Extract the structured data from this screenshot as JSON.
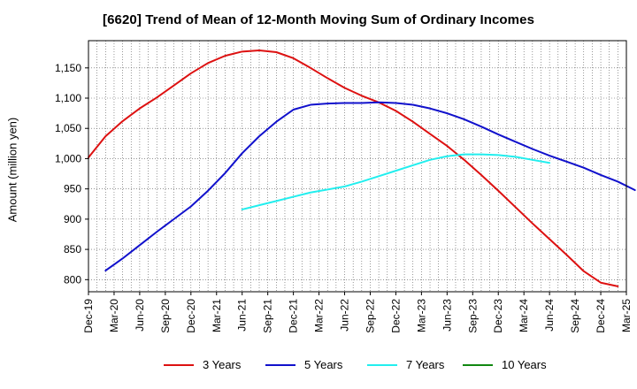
{
  "chart_data": {
    "type": "line",
    "title": "[6620]  Trend of Mean of 12-Month Moving Sum of Ordinary Incomes",
    "xlabel": "",
    "ylabel": "Amount (million yen)",
    "ylim": [
      780,
      1195
    ],
    "yticks": [
      800,
      850,
      900,
      950,
      1000,
      1050,
      1100,
      1150
    ],
    "ytick_labels": [
      "800",
      "850",
      "900",
      "950",
      "1,000",
      "1,050",
      "1,100",
      "1,150"
    ],
    "xtick_labels": [
      "Dec-19",
      "Mar-20",
      "Jun-20",
      "Sep-20",
      "Dec-20",
      "Mar-21",
      "Jun-21",
      "Sep-21",
      "Dec-21",
      "Mar-22",
      "Jun-22",
      "Sep-22",
      "Dec-22",
      "Mar-23",
      "Jun-23",
      "Sep-23",
      "Dec-23",
      "Mar-24",
      "Jun-24",
      "Sep-24",
      "Dec-24",
      "Mar-25"
    ],
    "grid": true,
    "legend_position": "bottom",
    "series": [
      {
        "name": "3 Years",
        "color": "#dd1111",
        "start_index": 0,
        "values": [
          1002,
          1037,
          1062,
          1083,
          1101,
          1121,
          1141,
          1158,
          1170,
          1177,
          1179,
          1176,
          1166,
          1150,
          1133,
          1117,
          1104,
          1093,
          1079,
          1061,
          1041,
          1021,
          998,
          973,
          947,
          920,
          893,
          867,
          841,
          814,
          795,
          789
        ]
      },
      {
        "name": "5 Years",
        "color": "#1111cc",
        "start_index": 1,
        "values": [
          815,
          835,
          857,
          879,
          900,
          921,
          947,
          976,
          1009,
          1037,
          1061,
          1081,
          1089,
          1091,
          1092,
          1092,
          1093,
          1092,
          1089,
          1083,
          1075,
          1065,
          1053,
          1040,
          1028,
          1016,
          1005,
          995,
          985,
          973,
          962,
          948
        ]
      },
      {
        "name": "7 Years",
        "color": "#22eeee",
        "start_index": 9,
        "values": [
          916,
          923,
          930,
          937,
          944,
          949,
          954,
          962,
          971,
          980,
          989,
          998,
          1004,
          1007,
          1007,
          1006,
          1003,
          998,
          993
        ]
      },
      {
        "name": "10 Years",
        "color": "#118811",
        "start_index": 0,
        "values": []
      }
    ]
  }
}
